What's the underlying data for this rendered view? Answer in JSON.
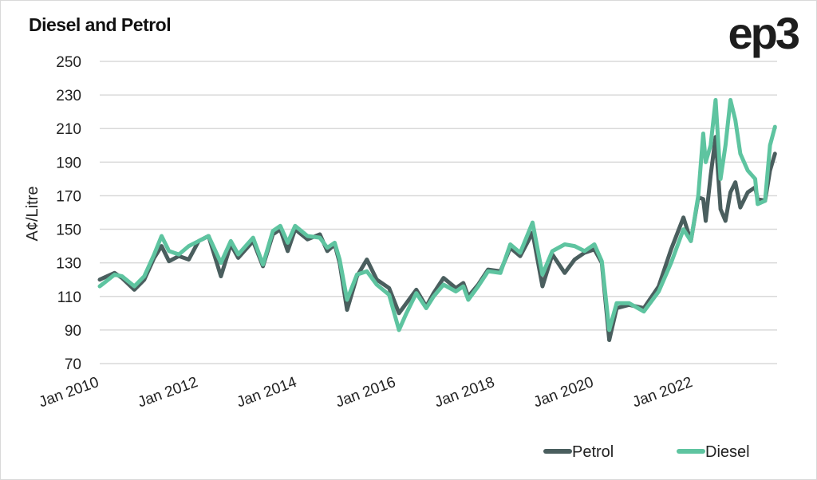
{
  "chart_data": {
    "type": "line",
    "title": "Diesel and Petrol",
    "logo": "ep3",
    "xlabel": "",
    "ylabel": "A¢/Litre",
    "ylim": [
      70,
      250
    ],
    "xlim": [
      2010.0,
      2023.7
    ],
    "yticks": [
      70,
      90,
      110,
      130,
      150,
      170,
      190,
      210,
      230,
      250
    ],
    "xticks": [
      {
        "value": 2010,
        "label": "Jan 2010"
      },
      {
        "value": 2012,
        "label": "Jan 2012"
      },
      {
        "value": 2014,
        "label": "Jan 2014"
      },
      {
        "value": 2016,
        "label": "Jan 2016"
      },
      {
        "value": 2018,
        "label": "Jan 2018"
      },
      {
        "value": 2020,
        "label": "Jan 2020"
      },
      {
        "value": 2022,
        "label": "Jan 2022"
      }
    ],
    "grid": true,
    "legend_position": "bottom-right",
    "x": [
      2010.0,
      2010.3,
      2010.45,
      2010.7,
      2010.9,
      2011.1,
      2011.25,
      2011.4,
      2011.6,
      2011.8,
      2012.0,
      2012.2,
      2012.45,
      2012.65,
      2012.8,
      2013.1,
      2013.3,
      2013.5,
      2013.65,
      2013.8,
      2013.95,
      2014.2,
      2014.45,
      2014.6,
      2014.75,
      2014.85,
      2015.0,
      2015.2,
      2015.4,
      2015.6,
      2015.85,
      2016.05,
      2016.2,
      2016.4,
      2016.6,
      2016.75,
      2016.95,
      2017.2,
      2017.35,
      2017.45,
      2017.65,
      2017.85,
      2018.1,
      2018.3,
      2018.5,
      2018.75,
      2018.95,
      2019.15,
      2019.4,
      2019.6,
      2019.8,
      2020.0,
      2020.15,
      2020.3,
      2020.45,
      2020.7,
      2021.0,
      2021.3,
      2021.55,
      2021.8,
      2021.95,
      2022.1,
      2022.2,
      2022.25,
      2022.35,
      2022.45,
      2022.55,
      2022.65,
      2022.75,
      2022.85,
      2022.95,
      2023.1,
      2023.25,
      2023.3,
      2023.45,
      2023.55,
      2023.65
    ],
    "series": [
      {
        "name": "Petrol",
        "color": "#4a5e5e",
        "values": [
          120,
          124,
          121,
          114,
          120,
          133,
          140,
          131,
          134,
          132,
          143,
          146,
          122,
          141,
          133,
          143,
          128,
          147,
          150,
          137,
          150,
          144,
          147,
          137,
          141,
          130,
          102,
          122,
          132,
          120,
          115,
          100,
          106,
          114,
          104,
          112,
          121,
          115,
          118,
          110,
          117,
          126,
          125,
          139,
          134,
          148,
          116,
          135,
          124,
          132,
          136,
          138,
          130,
          84,
          103,
          105,
          103,
          116,
          138,
          157,
          143,
          169,
          168,
          155,
          182,
          205,
          162,
          155,
          172,
          178,
          163,
          172,
          175,
          168,
          167,
          185,
          195
        ]
      },
      {
        "name": "Diesel",
        "color": "#5ec4a0",
        "values": [
          116,
          123,
          122,
          116,
          122,
          135,
          146,
          137,
          135,
          140,
          143,
          146,
          130,
          143,
          135,
          145,
          129,
          149,
          152,
          142,
          152,
          146,
          145,
          139,
          142,
          132,
          108,
          123,
          125,
          117,
          111,
          90,
          100,
          112,
          103,
          110,
          117,
          113,
          116,
          108,
          116,
          125,
          124,
          141,
          136,
          154,
          123,
          137,
          141,
          140,
          137,
          141,
          131,
          90,
          106,
          106,
          101,
          113,
          130,
          150,
          143,
          170,
          207,
          190,
          200,
          227,
          180,
          200,
          227,
          215,
          195,
          185,
          180,
          165,
          167,
          200,
          211
        ]
      }
    ]
  }
}
